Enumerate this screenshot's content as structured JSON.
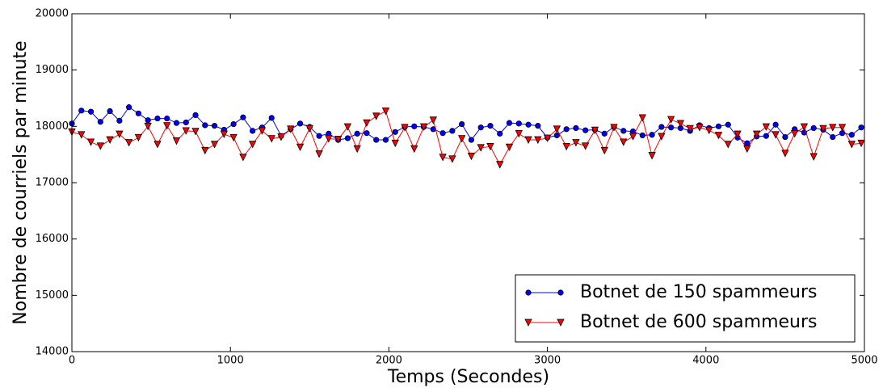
{
  "chart_data": {
    "type": "line",
    "x_label": "Temps (Secondes)",
    "y_label": "Nombre de courriels par minute",
    "x": [
      0,
      60,
      120,
      180,
      240,
      300,
      360,
      420,
      480,
      540,
      600,
      660,
      720,
      780,
      840,
      900,
      960,
      1020,
      1080,
      1140,
      1200,
      1260,
      1320,
      1380,
      1440,
      1500,
      1560,
      1620,
      1680,
      1740,
      1800,
      1860,
      1920,
      1980,
      2040,
      2100,
      2160,
      2220,
      2280,
      2340,
      2400,
      2460,
      2520,
      2580,
      2640,
      2700,
      2760,
      2820,
      2880,
      2940,
      3000,
      3060,
      3120,
      3180,
      3240,
      3300,
      3360,
      3420,
      3480,
      3540,
      3600,
      3660,
      3720,
      3780,
      3840,
      3900,
      3960,
      4020,
      4080,
      4140,
      4200,
      4260,
      4320,
      4380,
      4440,
      4500,
      4560,
      4620,
      4680,
      4740,
      4800,
      4860,
      4920,
      4980
    ],
    "series": [
      {
        "name": "Botnet de 150 spammeurs",
        "color": "#0000ff",
        "marker": "circle",
        "values": [
          18050,
          18280,
          18260,
          18080,
          18270,
          18100,
          18340,
          18230,
          18110,
          18140,
          18140,
          18060,
          18070,
          18200,
          18020,
          18010,
          17940,
          18040,
          18160,
          17920,
          17980,
          18150,
          17830,
          17950,
          18050,
          17990,
          17830,
          17870,
          17760,
          17790,
          17870,
          17880,
          17760,
          17760,
          17900,
          17990,
          18000,
          17990,
          17950,
          17880,
          17920,
          18040,
          17760,
          17980,
          18010,
          17870,
          18060,
          18050,
          18030,
          18010,
          17800,
          17840,
          17950,
          17970,
          17930,
          17940,
          17870,
          17990,
          17920,
          17910,
          17840,
          17850,
          17990,
          17980,
          17970,
          17920,
          18020,
          17970,
          18000,
          18030,
          17800,
          17700,
          17820,
          17830,
          18030,
          17810,
          17950,
          17890,
          17970,
          17940,
          17810,
          17880,
          17850,
          17980
        ]
      },
      {
        "name": "Botnet de 600 spammeurs",
        "color": "#ff0000",
        "marker": "triangle-down",
        "values": [
          17900,
          17850,
          17720,
          17650,
          17760,
          17860,
          17710,
          17800,
          18000,
          17680,
          18010,
          17740,
          17920,
          17910,
          17570,
          17680,
          17860,
          17800,
          17450,
          17680,
          17920,
          17780,
          17810,
          17950,
          17630,
          17960,
          17510,
          17780,
          17770,
          17990,
          17600,
          18060,
          18180,
          18270,
          17700,
          17980,
          17600,
          17990,
          18110,
          17450,
          17420,
          17780,
          17470,
          17620,
          17640,
          17320,
          17630,
          17870,
          17760,
          17760,
          17790,
          17950,
          17640,
          17710,
          17650,
          17930,
          17570,
          17980,
          17720,
          17820,
          18150,
          17480,
          17820,
          18120,
          18050,
          17960,
          17980,
          17930,
          17840,
          17680,
          17860,
          17600,
          17860,
          17990,
          17850,
          17520,
          17870,
          17990,
          17460,
          17960,
          17980,
          17980,
          17680,
          17700
        ]
      }
    ],
    "xlim": [
      0,
      5000
    ],
    "xticks": [
      0,
      1000,
      2000,
      3000,
      4000,
      5000
    ],
    "ylim": [
      14000,
      20000
    ],
    "yticks": [
      14000,
      15000,
      16000,
      17000,
      18000,
      19000,
      20000
    ],
    "grid": false,
    "legend_position": "lower right"
  }
}
